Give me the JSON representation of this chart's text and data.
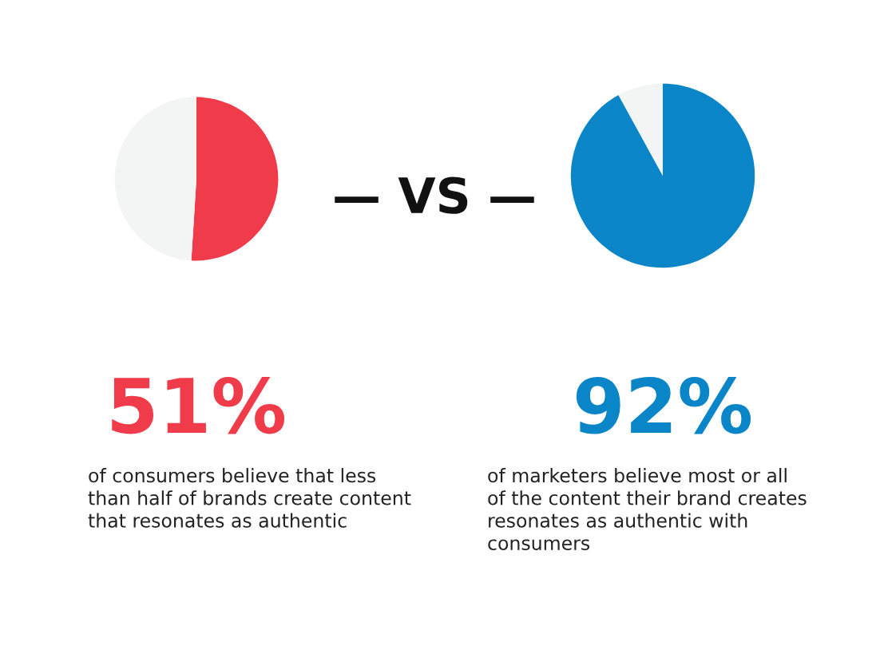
{
  "chart_data": [
    {
      "type": "pie",
      "title": "51%",
      "categories": [
        null,
        null
      ],
      "values": [
        51,
        49
      ],
      "colors": [
        "#f03c4a",
        "#f3f4f4"
      ],
      "annotations": [
        "of consumers believe that less\nthan half of brands create content\nthat resonates as authentic",
        "— VS —"
      ]
    },
    {
      "type": "pie",
      "title": "92%",
      "categories": [
        null,
        null
      ],
      "values": [
        92,
        8
      ],
      "colors": [
        "#0a86c8",
        "#f3f4f4"
      ],
      "annotations": [
        "of marketers believe most or all\nof the content their brand creates\nresonates as authentic with\nconsumers"
      ]
    }
  ]
}
